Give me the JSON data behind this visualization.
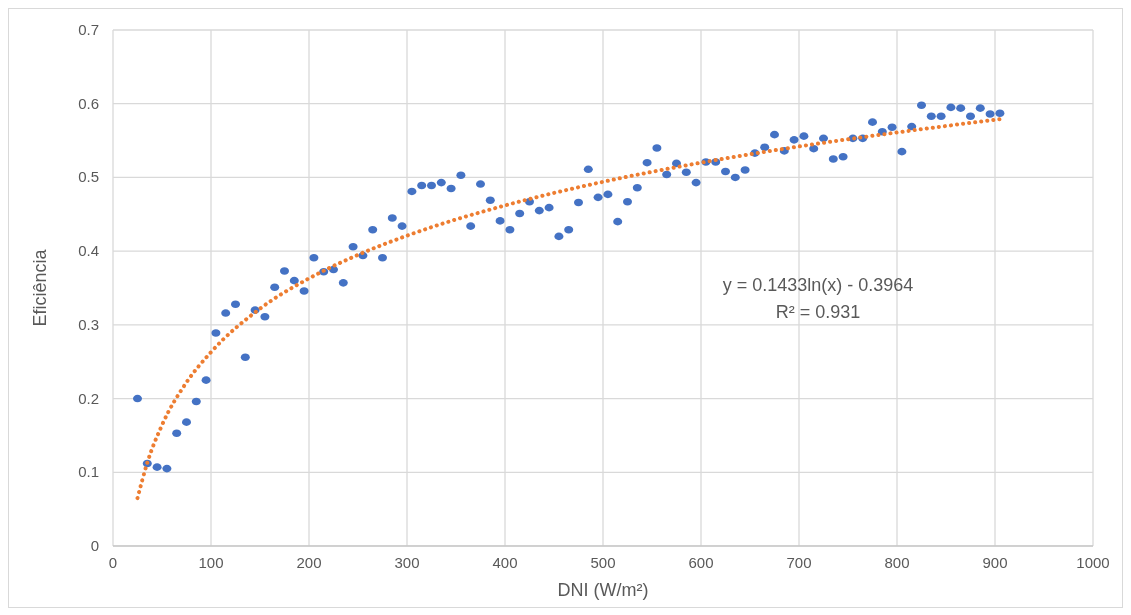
{
  "chart_data": {
    "type": "scatter",
    "xlabel": "DNI (W/m²)",
    "ylabel": "Eficiência",
    "xlim": [
      0,
      1000
    ],
    "xticks": [
      0,
      100,
      200,
      300,
      400,
      500,
      600,
      700,
      800,
      900,
      1000
    ],
    "ylim": [
      0,
      0.7
    ],
    "yticks": [
      0,
      0.1,
      0.2,
      0.3,
      0.4,
      0.5,
      0.6,
      0.7
    ],
    "grid": true,
    "annotations": [
      "y = 0.1433ln(x) - 0.3964",
      "R² = 0.931"
    ],
    "series": [
      {
        "color": "#4472c4",
        "marker": "circle",
        "x": [
          25,
          35,
          45,
          55,
          65,
          75,
          85,
          95,
          105,
          115,
          125,
          135,
          145,
          155,
          165,
          175,
          185,
          195,
          205,
          215,
          225,
          235,
          245,
          255,
          265,
          275,
          285,
          295,
          305,
          315,
          325,
          335,
          345,
          355,
          365,
          375,
          385,
          395,
          405,
          415,
          425,
          435,
          445,
          455,
          465,
          475,
          485,
          495,
          505,
          515,
          525,
          535,
          545,
          555,
          565,
          575,
          585,
          595,
          605,
          615,
          625,
          635,
          645,
          655,
          665,
          675,
          685,
          695,
          705,
          715,
          725,
          735,
          745,
          755,
          765,
          775,
          785,
          795,
          805,
          815,
          825,
          835,
          845,
          855,
          865,
          875,
          885,
          895,
          905
        ],
        "values": [
          0.2,
          0.112,
          0.107,
          0.105,
          0.153,
          0.168,
          0.196,
          0.225,
          0.289,
          0.316,
          0.328,
          0.256,
          0.32,
          0.311,
          0.351,
          0.373,
          0.36,
          0.346,
          0.391,
          0.372,
          0.375,
          0.357,
          0.406,
          0.394,
          0.429,
          0.391,
          0.445,
          0.434,
          0.481,
          0.489,
          0.489,
          0.493,
          0.485,
          0.503,
          0.434,
          0.491,
          0.469,
          0.441,
          0.429,
          0.451,
          0.467,
          0.455,
          0.459,
          0.42,
          0.429,
          0.466,
          0.511,
          0.473,
          0.477,
          0.44,
          0.467,
          0.486,
          0.52,
          0.54,
          0.504,
          0.519,
          0.507,
          0.493,
          0.521,
          0.521,
          0.508,
          0.5,
          0.51,
          0.533,
          0.541,
          0.558,
          0.536,
          0.551,
          0.556,
          0.539,
          0.553,
          0.525,
          0.528,
          0.553,
          0.553,
          0.575,
          0.562,
          0.568,
          0.535,
          0.569,
          0.598,
          0.583,
          0.583,
          0.595,
          0.594,
          0.583,
          0.594,
          0.586,
          0.587
        ]
      },
      {
        "type": "line",
        "color": "#ed7d31",
        "line_style": "dotted",
        "marker": "none",
        "x": [
          25,
          35,
          50,
          75,
          100,
          150,
          200,
          250,
          300,
          400,
          500,
          600,
          700,
          800,
          905
        ],
        "values": [
          0.065,
          0.113,
          0.164,
          0.222,
          0.263,
          0.322,
          0.363,
          0.395,
          0.421,
          0.462,
          0.494,
          0.52,
          0.542,
          0.561,
          0.579
        ]
      }
    ]
  }
}
